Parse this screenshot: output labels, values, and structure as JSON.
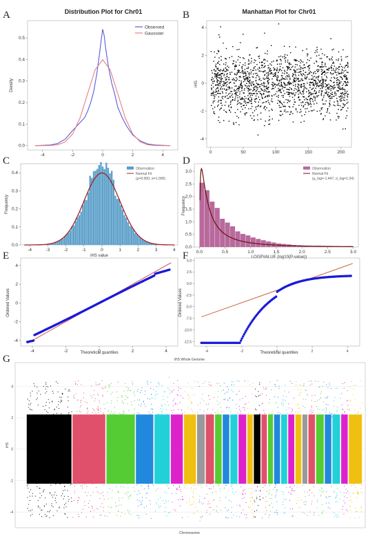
{
  "chart_data": [
    {
      "panel": "A",
      "type": "line",
      "title": "Distribution Plot for Chr01",
      "xlabel": "",
      "ylabel": "Density",
      "xlim": [
        -5,
        5
      ],
      "ylim": [
        -0.02,
        0.58
      ],
      "xticks": [
        "-4",
        "-2",
        "0",
        "2",
        "4"
      ],
      "yticks": [
        "0.0",
        "0.1",
        "0.2",
        "0.3",
        "0.4",
        "0.5"
      ],
      "legend": "top-right",
      "series": [
        {
          "name": "Observed",
          "color": "#5a5ad8",
          "x": [
            -4.5,
            -3.5,
            -3,
            -2.5,
            -2,
            -1.6,
            -1.2,
            -1,
            -0.8,
            -0.6,
            -0.4,
            -0.2,
            -0.1,
            0,
            0.1,
            0.2,
            0.4,
            0.6,
            0.8,
            1,
            1.3,
            1.6,
            2,
            2.5,
            3,
            3.5,
            4.5
          ],
          "y": [
            0,
            0.003,
            0.01,
            0.03,
            0.07,
            0.1,
            0.13,
            0.16,
            0.2,
            0.25,
            0.33,
            0.43,
            0.49,
            0.54,
            0.51,
            0.45,
            0.36,
            0.29,
            0.24,
            0.18,
            0.13,
            0.09,
            0.05,
            0.022,
            0.008,
            0.003,
            0
          ]
        },
        {
          "name": "Gaussian",
          "color": "#e88080",
          "x": [
            -4.5,
            -4,
            -3.5,
            -3,
            -2.5,
            -2,
            -1.5,
            -1,
            -0.5,
            0,
            0.5,
            1,
            1.5,
            2,
            2.5,
            3,
            3.5,
            4,
            4.5
          ],
          "y": [
            0,
            0.0001,
            0.0009,
            0.0044,
            0.0175,
            0.054,
            0.13,
            0.242,
            0.352,
            0.399,
            0.352,
            0.242,
            0.13,
            0.054,
            0.0175,
            0.0044,
            0.0009,
            0.0001,
            0
          ]
        }
      ]
    },
    {
      "panel": "B",
      "type": "scatter",
      "title": "Manhattan Plot for Chr01",
      "xlabel": "",
      "ylabel": "iHS",
      "xlim": [
        -6,
        216
      ],
      "ylim": [
        -4.6,
        4.5
      ],
      "xticks": [
        "0",
        "50",
        "100",
        "150",
        "200"
      ],
      "yticks": [
        "-4",
        "-2",
        "0",
        "2",
        "4"
      ],
      "x_range": [
        0,
        210
      ],
      "color": "#000000"
    },
    {
      "panel": "C",
      "type": "bar",
      "title": "",
      "xlabel": "iHS value",
      "ylabel": "Frequency",
      "xlim": [
        -4.5,
        4.2
      ],
      "ylim": [
        0,
        0.45
      ],
      "xticks": [
        "-4",
        "-3",
        "-2",
        "-1",
        "0",
        "1",
        "2",
        "3",
        "4"
      ],
      "yticks": [
        "0.0",
        "0.1",
        "0.2",
        "0.3",
        "0.4"
      ],
      "legend": "top-right",
      "legend_entries": [
        "Observation",
        "Normal Fit",
        "(μ=0.000, σ=1.000)"
      ],
      "bar_color": "#5a9fc9",
      "fit_color": "#a02020",
      "bin_start": -4.4,
      "bin_width": 0.1,
      "fit": {
        "mu": 0.0,
        "sigma": 1.0
      }
    },
    {
      "panel": "D",
      "type": "bar",
      "title": "",
      "xlabel": "LOGPVALUE (log10(P-value))",
      "ylabel": "Frequency",
      "xlim": [
        -0.1,
        3.1
      ],
      "ylim": [
        0,
        3.3
      ],
      "xticks": [
        "0.0",
        "0.5",
        "1.0",
        "1.5",
        "2.0",
        "2.5",
        "3.0"
      ],
      "yticks": [
        "0.0",
        "0.5",
        "1.0",
        "1.5",
        "2.0",
        "2.5",
        "3.0"
      ],
      "legend": "top-right",
      "legend_entries": [
        "Observation",
        "Normal Fit",
        "(μ_log=-1.447, σ_log=1.34)"
      ],
      "bar_color": "#b86a9c",
      "fit_color": "#6a1010",
      "bin_start": 0,
      "bin_width": 0.1,
      "values": [
        2.55,
        2.25,
        1.8,
        1.55,
        1.12,
        0.97,
        0.82,
        0.62,
        0.52,
        0.46,
        0.38,
        0.32,
        0.27,
        0.22,
        0.18,
        0.14,
        0.12,
        0.1,
        0.08,
        0.065,
        0.055,
        0.045,
        0.035,
        0.03,
        0.025,
        0.02,
        0.015,
        0.012,
        0.01,
        0.008
      ],
      "fit": {
        "mu_log": -1.447,
        "sigma_log": 1.34
      }
    },
    {
      "panel": "E",
      "type": "scatter",
      "title": "",
      "xlabel": "Theoretical quantiles",
      "ylabel": "Ordered Values",
      "xlim": [
        -4.7,
        4.7
      ],
      "ylim": [
        -4.6,
        4.8
      ],
      "xticks": [
        "-4",
        "-2",
        "0",
        "2",
        "4"
      ],
      "yticks": [
        "-4",
        "-2",
        "0",
        "2",
        "4"
      ],
      "point_color": "#1a1ad8",
      "line_color": "#d04040",
      "ref_line": {
        "slope": 1.0,
        "intercept": 0.0
      }
    },
    {
      "panel": "F",
      "type": "scatter",
      "title": "",
      "xlabel": "Theoretical quantiles",
      "ylabel": "Ordered Values",
      "xlim": [
        -4.7,
        4.7
      ],
      "ylim": [
        -13.5,
        5.5
      ],
      "xticks": [
        "-4",
        "-2",
        "0",
        "2",
        "4"
      ],
      "yticks": [
        "-12.5",
        "-10.0",
        "-7.5",
        "-5.0",
        "-2.5",
        "0.0",
        "2.5",
        "5.0"
      ],
      "point_color": "#1a1ad8",
      "line_color": "#c05030",
      "ref_line": {
        "slope": 1.34,
        "intercept": -1.447
      }
    },
    {
      "panel": "G",
      "type": "scatter",
      "title": "iHS Whole Genome",
      "xlabel": "Chromosome",
      "ylabel": "iHS",
      "yticks": [
        "-4",
        "-2",
        "0",
        "2",
        "4"
      ],
      "ylim": [
        -5.0,
        5.5
      ],
      "chromosomes": [
        {
          "color": "#000000",
          "weight": 8.4
        },
        {
          "color": "#e0506a",
          "weight": 6.2
        },
        {
          "color": "#55cc33",
          "weight": 5.4
        },
        {
          "color": "#2288dd",
          "weight": 3.4
        },
        {
          "color": "#22d0d8",
          "weight": 3.0
        },
        {
          "color": "#dd22cc",
          "weight": 2.4
        },
        {
          "color": "#f0c010",
          "weight": 2.4
        },
        {
          "color": "#999999",
          "weight": 1.6
        },
        {
          "color": "#e0506a",
          "weight": 1.7
        },
        {
          "color": "#55cc33",
          "weight": 1.4
        },
        {
          "color": "#2288dd",
          "weight": 1.4
        },
        {
          "color": "#22d0d8",
          "weight": 1.5
        },
        {
          "color": "#dd22cc",
          "weight": 1.6
        },
        {
          "color": "#f0c010",
          "weight": 1.2
        },
        {
          "color": "#000000",
          "weight": 1.4
        },
        {
          "color": "#e0506a",
          "weight": 1.2
        },
        {
          "color": "#55cc33",
          "weight": 1.1
        },
        {
          "color": "#2288dd",
          "weight": 1.3
        },
        {
          "color": "#22d0d8",
          "weight": 1.3
        },
        {
          "color": "#dd22cc",
          "weight": 1.3
        },
        {
          "color": "#f0c010",
          "weight": 1.3
        },
        {
          "color": "#999999",
          "weight": 1.1
        },
        {
          "color": "#e0506a",
          "weight": 1.4
        },
        {
          "color": "#55cc33",
          "weight": 1.6
        },
        {
          "color": "#2288dd",
          "weight": 1.4
        },
        {
          "color": "#22d0d8",
          "weight": 1.6
        },
        {
          "color": "#dd22cc",
          "weight": 1.4
        },
        {
          "color": "#f0c010",
          "weight": 2.6
        }
      ]
    }
  ]
}
